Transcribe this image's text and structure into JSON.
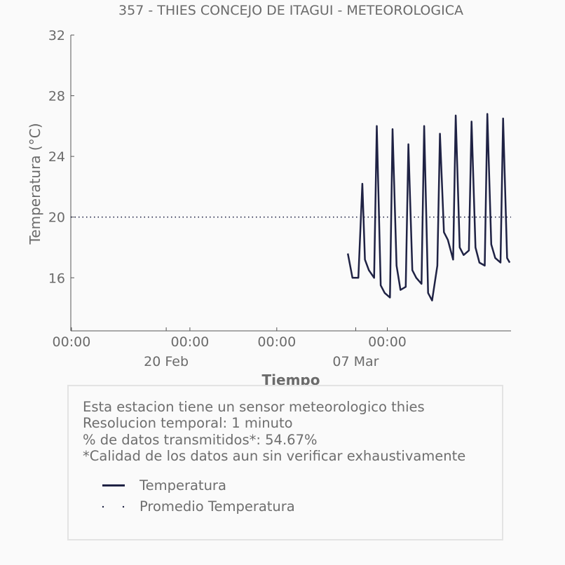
{
  "chart_data": {
    "type": "line",
    "title": "357 - THIES CONCEJO DE ITAGUI - METEOROLOGICA",
    "xlabel": "Tiempo",
    "ylabel": "Temperatura (°C)",
    "ylim": [
      12.5,
      32
    ],
    "yticks": [
      16,
      20,
      24,
      28,
      32
    ],
    "xlim": [
      "2018-02-15 23:00",
      "2018-03-15 20:00"
    ],
    "xticks": [
      {
        "at": "2018-02-16 00:00",
        "label": "00:00"
      },
      {
        "at": "2018-02-23 12:00",
        "label": "00:00"
      },
      {
        "at": "2018-03-01 00:00",
        "label": "00:00"
      },
      {
        "at": "2018-03-08 00:00",
        "label": "00:00"
      }
    ],
    "minor_ticks": [
      "2018-02-22 00:00",
      "2018-03-06 00:00"
    ],
    "date_labels": [
      {
        "at": "2018-02-22 00:00",
        "label": "20 Feb"
      },
      {
        "at": "2018-03-06 00:00",
        "label": "07 Mar"
      }
    ],
    "grid": false,
    "series": [
      {
        "name": "Temperatura",
        "color": "#1f2244",
        "style": "solid",
        "x": [
          "2018-03-05 12:00",
          "2018-03-05 19:00",
          "2018-03-06 04:00",
          "2018-03-06 10:00",
          "2018-03-06 14:00",
          "2018-03-06 20:00",
          "2018-03-07 04:00",
          "2018-03-07 08:00",
          "2018-03-07 14:00",
          "2018-03-07 20:00",
          "2018-03-08 04:00",
          "2018-03-08 08:00",
          "2018-03-08 14:00",
          "2018-03-08 20:00",
          "2018-03-09 04:00",
          "2018-03-09 08:00",
          "2018-03-09 14:00",
          "2018-03-09 20:00",
          "2018-03-10 04:00",
          "2018-03-10 08:00",
          "2018-03-10 14:00",
          "2018-03-10 20:00",
          "2018-03-11 04:00",
          "2018-03-11 08:00",
          "2018-03-11 14:00",
          "2018-03-11 20:00",
          "2018-03-12 04:00",
          "2018-03-12 08:00",
          "2018-03-12 14:00",
          "2018-03-12 20:00",
          "2018-03-13 04:00",
          "2018-03-13 08:00",
          "2018-03-13 14:00",
          "2018-03-13 20:00",
          "2018-03-14 04:00",
          "2018-03-14 08:00",
          "2018-03-14 14:00",
          "2018-03-14 20:00",
          "2018-03-15 04:00",
          "2018-03-15 08:00",
          "2018-03-15 14:00",
          "2018-03-15 18:00"
        ],
        "y": [
          17.6,
          16.0,
          16.0,
          22.2,
          17.2,
          16.5,
          16.0,
          26.0,
          15.5,
          15.0,
          14.7,
          25.8,
          16.8,
          15.2,
          15.4,
          24.8,
          16.5,
          16.0,
          15.6,
          26.0,
          15.0,
          14.5,
          16.8,
          25.5,
          19.0,
          18.5,
          17.2,
          26.7,
          18.0,
          17.5,
          17.8,
          26.3,
          18.0,
          17.0,
          16.8,
          26.8,
          18.2,
          17.3,
          17.0,
          26.5,
          17.3,
          17.0
        ]
      },
      {
        "name": "Promedio Temperatura",
        "color": "#1f2244",
        "style": "dotted",
        "x": [
          "2018-02-15 23:00",
          "2018-03-15 20:00"
        ],
        "y": [
          20,
          20
        ]
      }
    ]
  },
  "info": {
    "line1": "Esta estacion tiene un sensor meteorologico thies",
    "line2": "Resolucion temporal: 1 minuto",
    "line3": "% de datos transmitidos*: 54.67%",
    "line4": "*Calidad de los datos aun sin verificar exhaustivamente"
  },
  "legend": {
    "item1": "Temperatura",
    "item2": "Promedio Temperatura"
  }
}
